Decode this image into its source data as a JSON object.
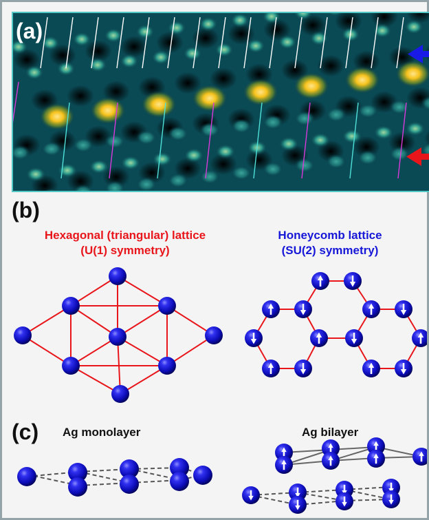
{
  "panels": {
    "a": {
      "label": "(a)"
    },
    "b": {
      "label": "(b)"
    },
    "c": {
      "label": "(c)"
    }
  },
  "hexagonal": {
    "title_line1": "Hexagonal (triangular) lattice",
    "title_line2": "(U(1) symmetry)"
  },
  "honeycomb": {
    "title_line1": "Honeycomb lattice",
    "title_line2": "(SU(2) symmetry)",
    "spins": [
      "up",
      "down",
      "up",
      "down",
      "up",
      "down",
      "down",
      "up",
      "down",
      "up",
      "up",
      "down",
      "up",
      "down"
    ]
  },
  "monolayer": {
    "title": "Ag monolayer"
  },
  "bilayer": {
    "title": "Ag bilayer",
    "top_spins": [
      "up",
      "up",
      "up",
      "up"
    ],
    "bottom_spins": [
      "down",
      "down",
      "down",
      "down"
    ]
  },
  "colors": {
    "atom": "#1a1ae0",
    "lattice_bond": "#e8161b",
    "arrow_top": "#1a1ae6",
    "arrow_bottom": "#e8161b",
    "marker_white": "#ffffff",
    "marker_cyan": "#4fe0d8",
    "marker_magenta": "#d83ad8",
    "stm_background": "#063a46",
    "stm_bright": "#f6c21c"
  }
}
